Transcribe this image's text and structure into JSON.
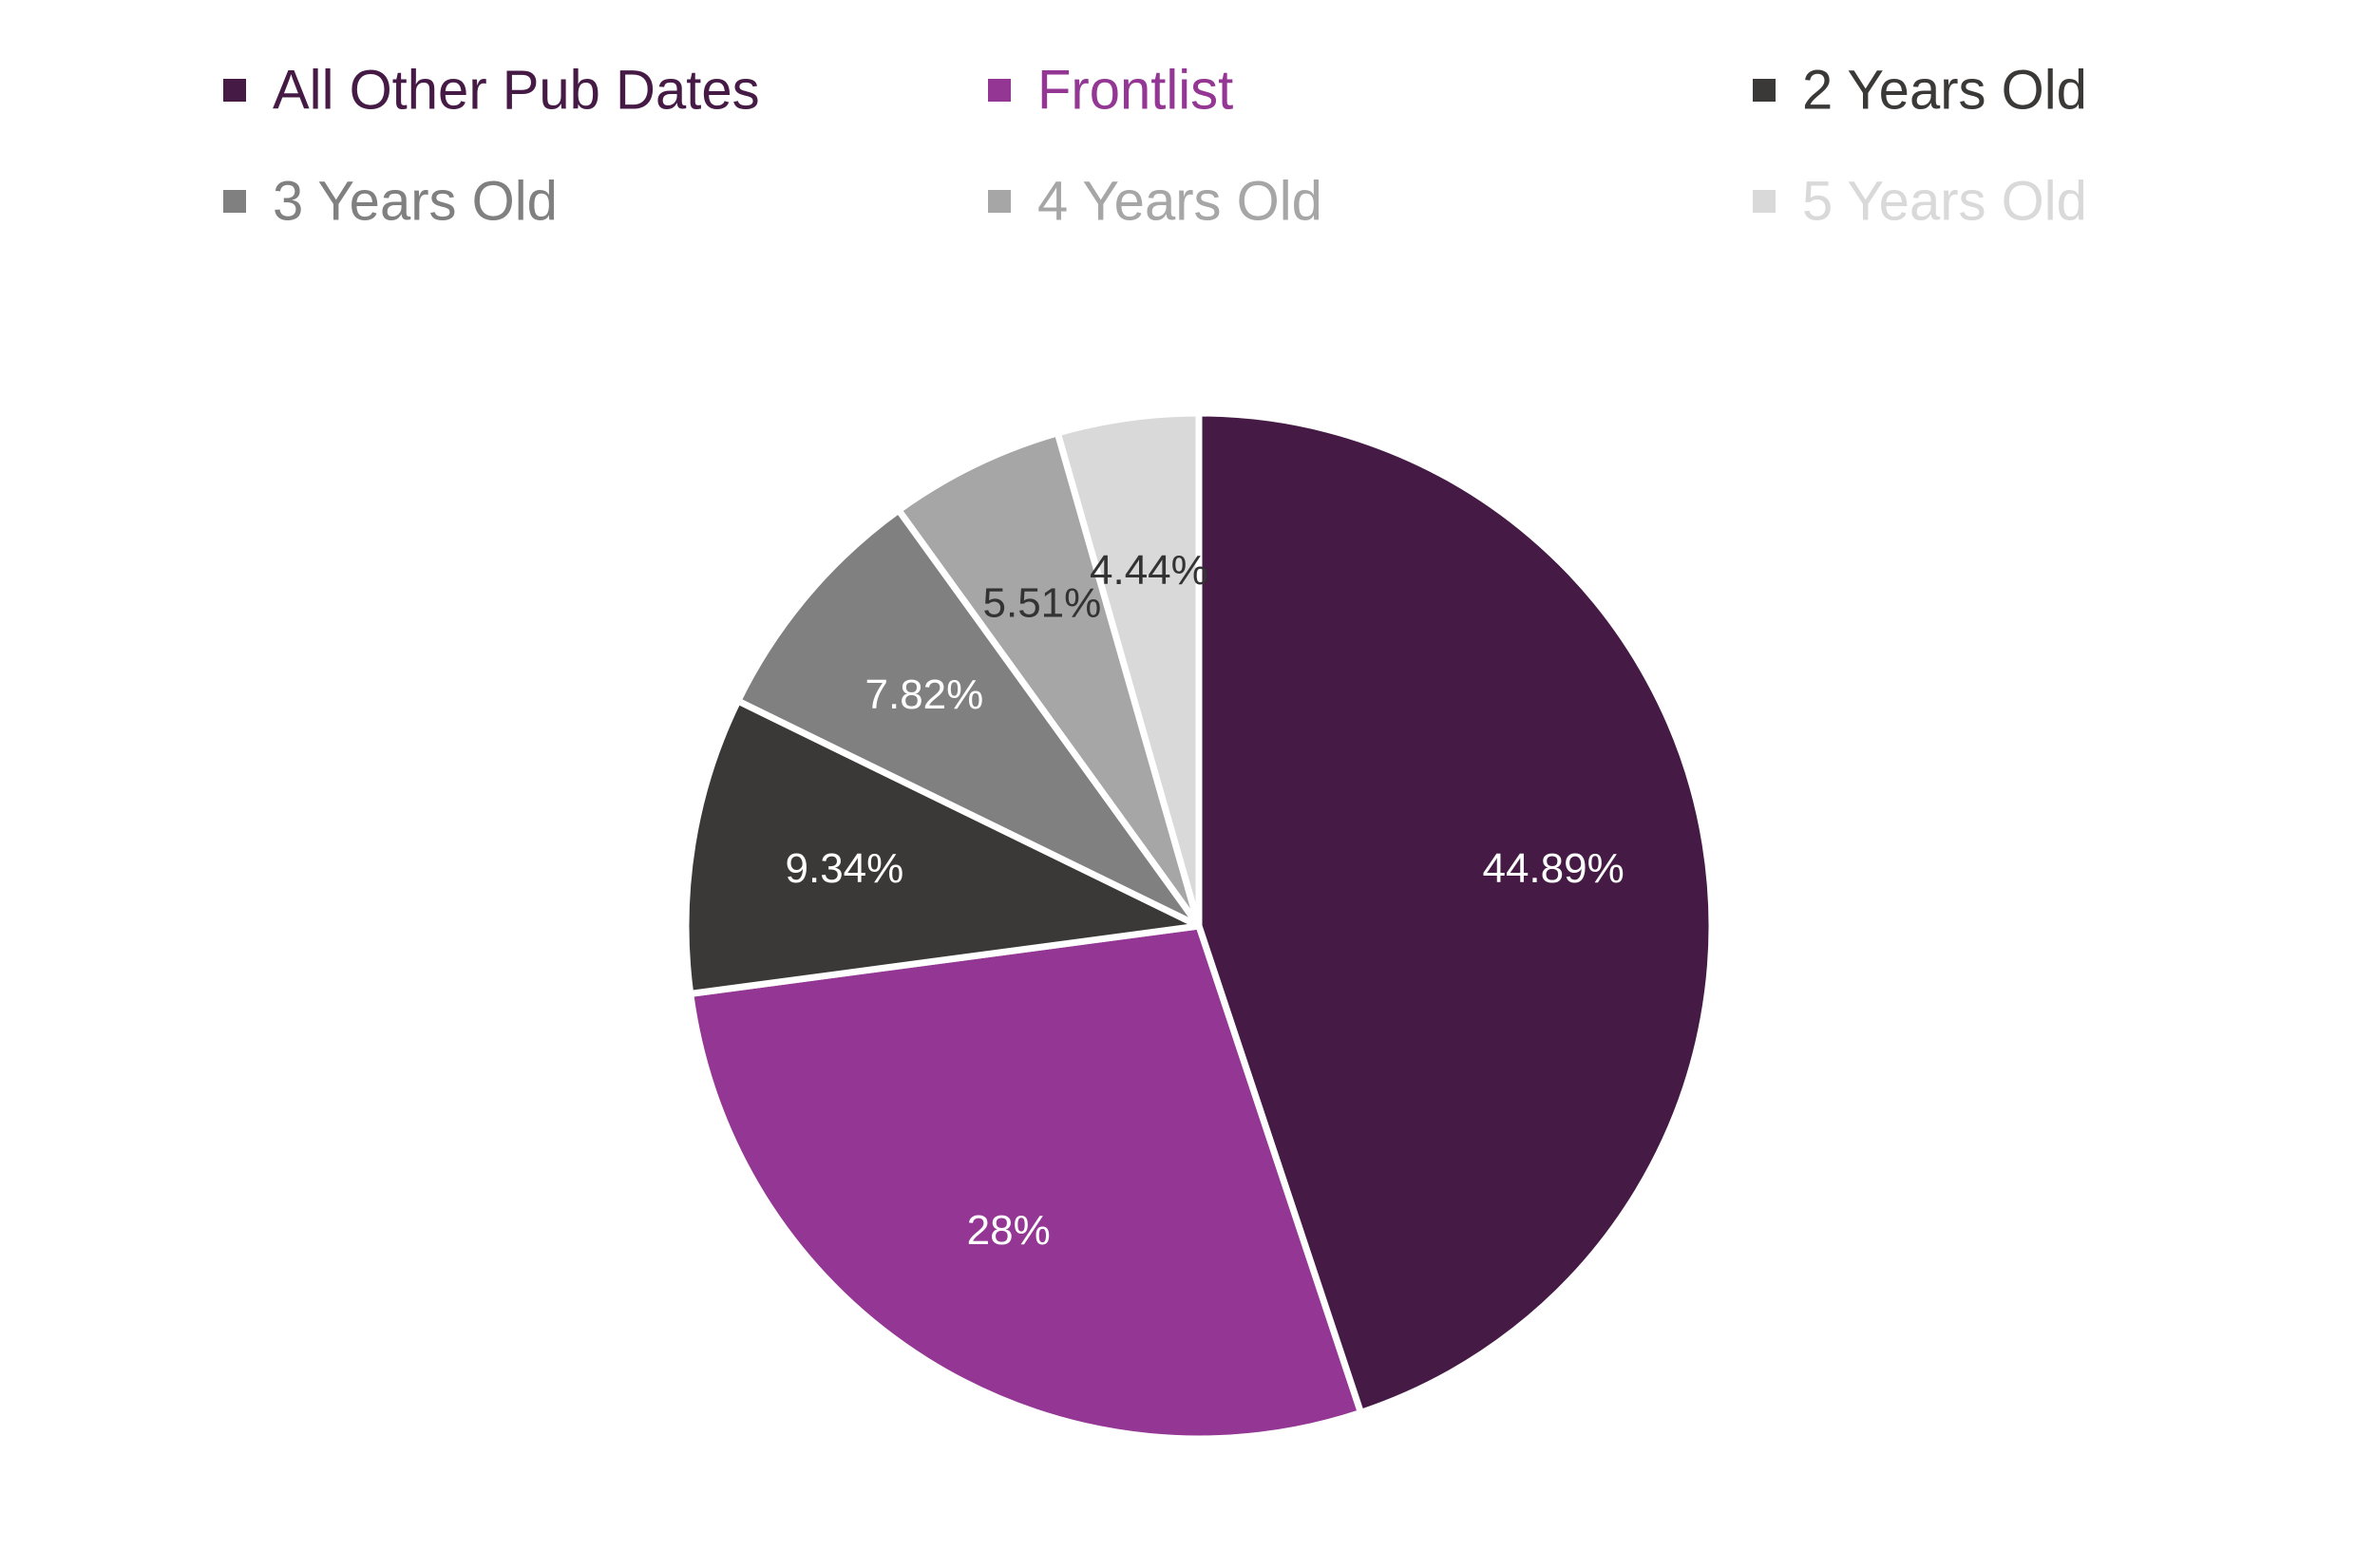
{
  "chart_data": {
    "type": "pie",
    "title": "",
    "legend_position": "top",
    "categories": [
      "All Other Pub Dates",
      "Frontlist",
      "2 Years Old",
      "3 Years Old",
      "4 Years Old",
      "5 Years Old"
    ],
    "values": [
      44.89,
      28,
      9.34,
      7.82,
      5.51,
      4.44
    ],
    "value_labels": [
      "44.89%",
      "28%",
      "9.34%",
      "7.82%",
      "5.51%",
      "4.44%"
    ],
    "colors": [
      "#451a45",
      "#943694",
      "#3a3937",
      "#808080",
      "#a6a6a6",
      "#d9d9d9"
    ],
    "label_colors": [
      "#ffffff",
      "#ffffff",
      "#ffffff",
      "#ffffff",
      "#333333",
      "#333333"
    ],
    "start_angle_deg": 0,
    "direction": "clockwise"
  }
}
